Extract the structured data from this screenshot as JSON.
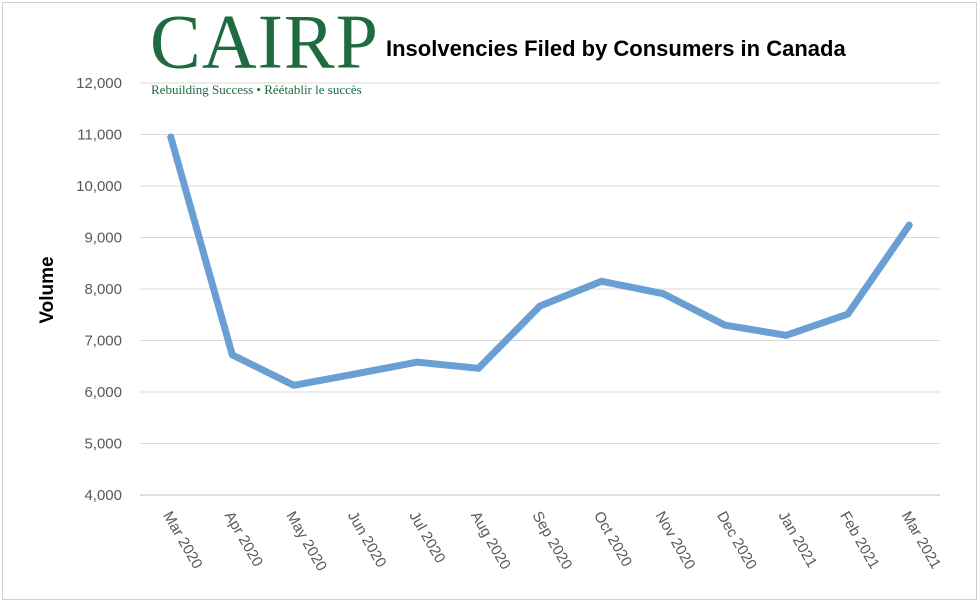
{
  "logo": {
    "name": "CAIRP",
    "tagline": "Rebuilding Success • Réétablir le succès"
  },
  "chart_data": {
    "type": "line",
    "title": "Insolvencies Filed by Consumers in Canada",
    "xlabel": "",
    "ylabel": "Volume",
    "ylim": [
      4000,
      12000
    ],
    "yticks": [
      4000,
      5000,
      6000,
      7000,
      8000,
      9000,
      10000,
      11000,
      12000
    ],
    "ytick_labels": [
      "4,000",
      "5,000",
      "6,000",
      "7,000",
      "8,000",
      "9,000",
      "10,000",
      "11,000",
      "12,000"
    ],
    "grid": true,
    "legend": "none",
    "categories": [
      "Mar 2020",
      "Apr 2020",
      "May 2020",
      "Jun 2020",
      "Jul 2020",
      "Aug 2020",
      "Sep 2020",
      "Oct 2020",
      "Nov 2020",
      "Dec 2020",
      "Jan 2021",
      "Feb 2021",
      "Mar 2021"
    ],
    "series": [
      {
        "values": [
          10950,
          6720,
          6130,
          6350,
          6580,
          6460,
          7670,
          8150,
          7910,
          7300,
          7100,
          7510,
          9240
        ],
        "color": "#6a9fd4"
      }
    ]
  }
}
